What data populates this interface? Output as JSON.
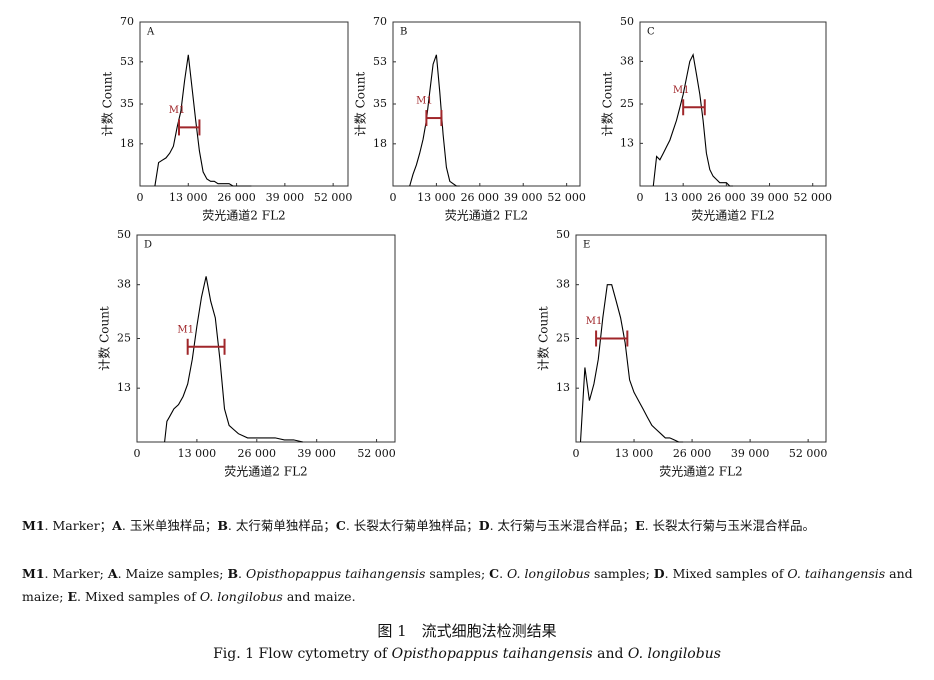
{
  "chart_data": [
    {
      "type": "line",
      "label": "A",
      "xlabel": "荧光通道2 FL2",
      "ylabel": "计数 Count",
      "color": "#000000",
      "xlim": [
        0,
        56000
      ],
      "ylim": [
        0,
        70
      ],
      "xticks": [
        0,
        {
          "value": 13000,
          "label": "13 000"
        },
        {
          "value": 26000,
          "label": "26 000"
        },
        {
          "value": 39000,
          "label": "39 000"
        },
        {
          "value": 52000,
          "label": "52 000"
        }
      ],
      "yticks": [
        18,
        35,
        53,
        70
      ],
      "x": [
        4000,
        5000,
        6000,
        7000,
        8000,
        9000,
        10000,
        11000,
        12000,
        13000,
        14000,
        15000,
        16000,
        17000,
        18000,
        19000,
        20000,
        21000,
        22000,
        23000,
        24000,
        25000,
        26000,
        28000,
        30000
      ],
      "values": [
        0,
        10,
        11,
        12,
        14,
        17,
        25,
        32,
        45,
        56,
        42,
        28,
        15,
        6,
        3,
        2,
        2,
        1,
        1,
        1,
        1,
        0,
        0,
        0,
        0
      ],
      "marker": {
        "label": "M1",
        "range": [
          10500,
          16000
        ],
        "level": 25,
        "color": "#a0262a"
      }
    },
    {
      "type": "line",
      "label": "B",
      "xlabel": "荧光通道2 FL2",
      "ylabel": "计数 Count",
      "color": "#000000",
      "xlim": [
        0,
        56000
      ],
      "ylim": [
        0,
        70
      ],
      "xticks": [
        0,
        {
          "value": 13000,
          "label": "13 000"
        },
        {
          "value": 26000,
          "label": "26 000"
        },
        {
          "value": 39000,
          "label": "39 000"
        },
        {
          "value": 52000,
          "label": "52 000"
        }
      ],
      "yticks": [
        18,
        35,
        53,
        70
      ],
      "x": [
        5000,
        6000,
        7000,
        8000,
        9000,
        10000,
        11000,
        12000,
        13000,
        14000,
        15000,
        16000,
        17000,
        18000,
        19000,
        20000
      ],
      "values": [
        0,
        5,
        9,
        14,
        20,
        28,
        40,
        52,
        56,
        40,
        22,
        8,
        2,
        1,
        0,
        0
      ],
      "marker": {
        "label": "M1",
        "range": [
          10000,
          14500
        ],
        "level": 29,
        "color": "#a0262a"
      }
    },
    {
      "type": "line",
      "label": "C",
      "xlabel": "荧光通道2 FL2",
      "ylabel": "计数 Count",
      "color": "#000000",
      "xlim": [
        0,
        56000
      ],
      "ylim": [
        0,
        50
      ],
      "xticks": [
        0,
        {
          "value": 13000,
          "label": "13 000"
        },
        {
          "value": 26000,
          "label": "26 000"
        },
        {
          "value": 39000,
          "label": "39 000"
        },
        {
          "value": 52000,
          "label": "52 000"
        }
      ],
      "yticks": [
        13,
        25,
        38,
        50
      ],
      "x": [
        4000,
        5000,
        6000,
        7000,
        8000,
        9000,
        10000,
        11000,
        12000,
        13000,
        14000,
        15000,
        16000,
        17000,
        18000,
        19000,
        20000,
        21000,
        22000,
        23000,
        24000,
        25000,
        26000,
        27000,
        28000
      ],
      "values": [
        0,
        9,
        8,
        10,
        12,
        14,
        17,
        20,
        24,
        28,
        33,
        38,
        40,
        34,
        28,
        20,
        10,
        5,
        3,
        2,
        1,
        1,
        1,
        0,
        0
      ],
      "marker": {
        "label": "M1",
        "range": [
          13000,
          19500
        ],
        "level": 24,
        "color": "#a0262a"
      }
    },
    {
      "type": "line",
      "label": "D",
      "xlabel": "荧光通道2 FL2",
      "ylabel": "计数 Count",
      "color": "#000000",
      "xlim": [
        0,
        56000
      ],
      "ylim": [
        0,
        50
      ],
      "xticks": [
        0,
        {
          "value": 13000,
          "label": "13 000"
        },
        {
          "value": 26000,
          "label": "26 000"
        },
        {
          "value": 39000,
          "label": "39 000"
        },
        {
          "value": 52000,
          "label": "52 000"
        }
      ],
      "yticks": [
        13,
        25,
        38,
        50
      ],
      "x": [
        6000,
        6500,
        7000,
        8000,
        9000,
        10000,
        11000,
        12000,
        13000,
        14000,
        15000,
        16000,
        17000,
        18000,
        19000,
        20000,
        21000,
        22000,
        24000,
        26000,
        28000,
        30000,
        32000,
        34000,
        36000
      ],
      "values": [
        0,
        5,
        6,
        8,
        9,
        11,
        14,
        20,
        28,
        35,
        40,
        34,
        30,
        20,
        8,
        4,
        3,
        2,
        1,
        1,
        1,
        1,
        0.5,
        0.5,
        0
      ],
      "marker": {
        "label": "M1",
        "range": [
          11000,
          19000
        ],
        "level": 23,
        "color": "#a0262a"
      }
    },
    {
      "type": "line",
      "label": "E",
      "xlabel": "荧光通道2 FL2",
      "ylabel": "计数 Count",
      "color": "#000000",
      "xlim": [
        0,
        56000
      ],
      "ylim": [
        0,
        50
      ],
      "xticks": [
        0,
        {
          "value": 13000,
          "label": "13 000"
        },
        {
          "value": 26000,
          "label": "26 000"
        },
        {
          "value": 39000,
          "label": "39 000"
        },
        {
          "value": 52000,
          "label": "52 000"
        }
      ],
      "yticks": [
        13,
        25,
        38,
        50
      ],
      "x": [
        1000,
        2000,
        3000,
        4000,
        5000,
        6000,
        7000,
        8000,
        9000,
        10000,
        11000,
        12000,
        13000,
        14000,
        15000,
        16000,
        17000,
        18000,
        19000,
        20000,
        21000,
        22000,
        23000,
        24000
      ],
      "values": [
        0,
        18,
        10,
        14,
        20,
        30,
        38,
        38,
        34,
        30,
        24,
        15,
        12,
        10,
        8,
        6,
        4,
        3,
        2,
        1,
        1,
        0.5,
        0,
        0
      ],
      "marker": {
        "label": "M1",
        "range": [
          4500,
          11500
        ],
        "level": 25,
        "color": "#a0262a"
      }
    }
  ],
  "caption_zh": [
    "M1",
    ". Marker；",
    "A",
    ". 玉米单独样品；",
    "B",
    ". 太行菊单独样品；",
    "C",
    ". 长裂太行菊单独样品；",
    "D",
    ". 太行菊与玉米混合样品；",
    "E",
    ". 长裂太行菊与玉米混合样品。"
  ],
  "caption_en": [
    "M1",
    ". Marker; ",
    "A",
    ". Maize samples; ",
    "B",
    ". ",
    "Opisthopappus taihangensis",
    " samples; ",
    "C",
    ". ",
    "O. longilobus",
    " samples; ",
    "D",
    ". Mixed samples of ",
    "O. taihangensis",
    " and maize; ",
    "E",
    ". Mixed samples of ",
    "O. longilobus",
    " and maize."
  ],
  "figure_title_zh": "图 1　流式细胞法检测结果",
  "figure_title_en": [
    "Fig. 1 Flow cytometry of ",
    "Opisthopappus taihangensis",
    " and ",
    "O. longilobus"
  ]
}
